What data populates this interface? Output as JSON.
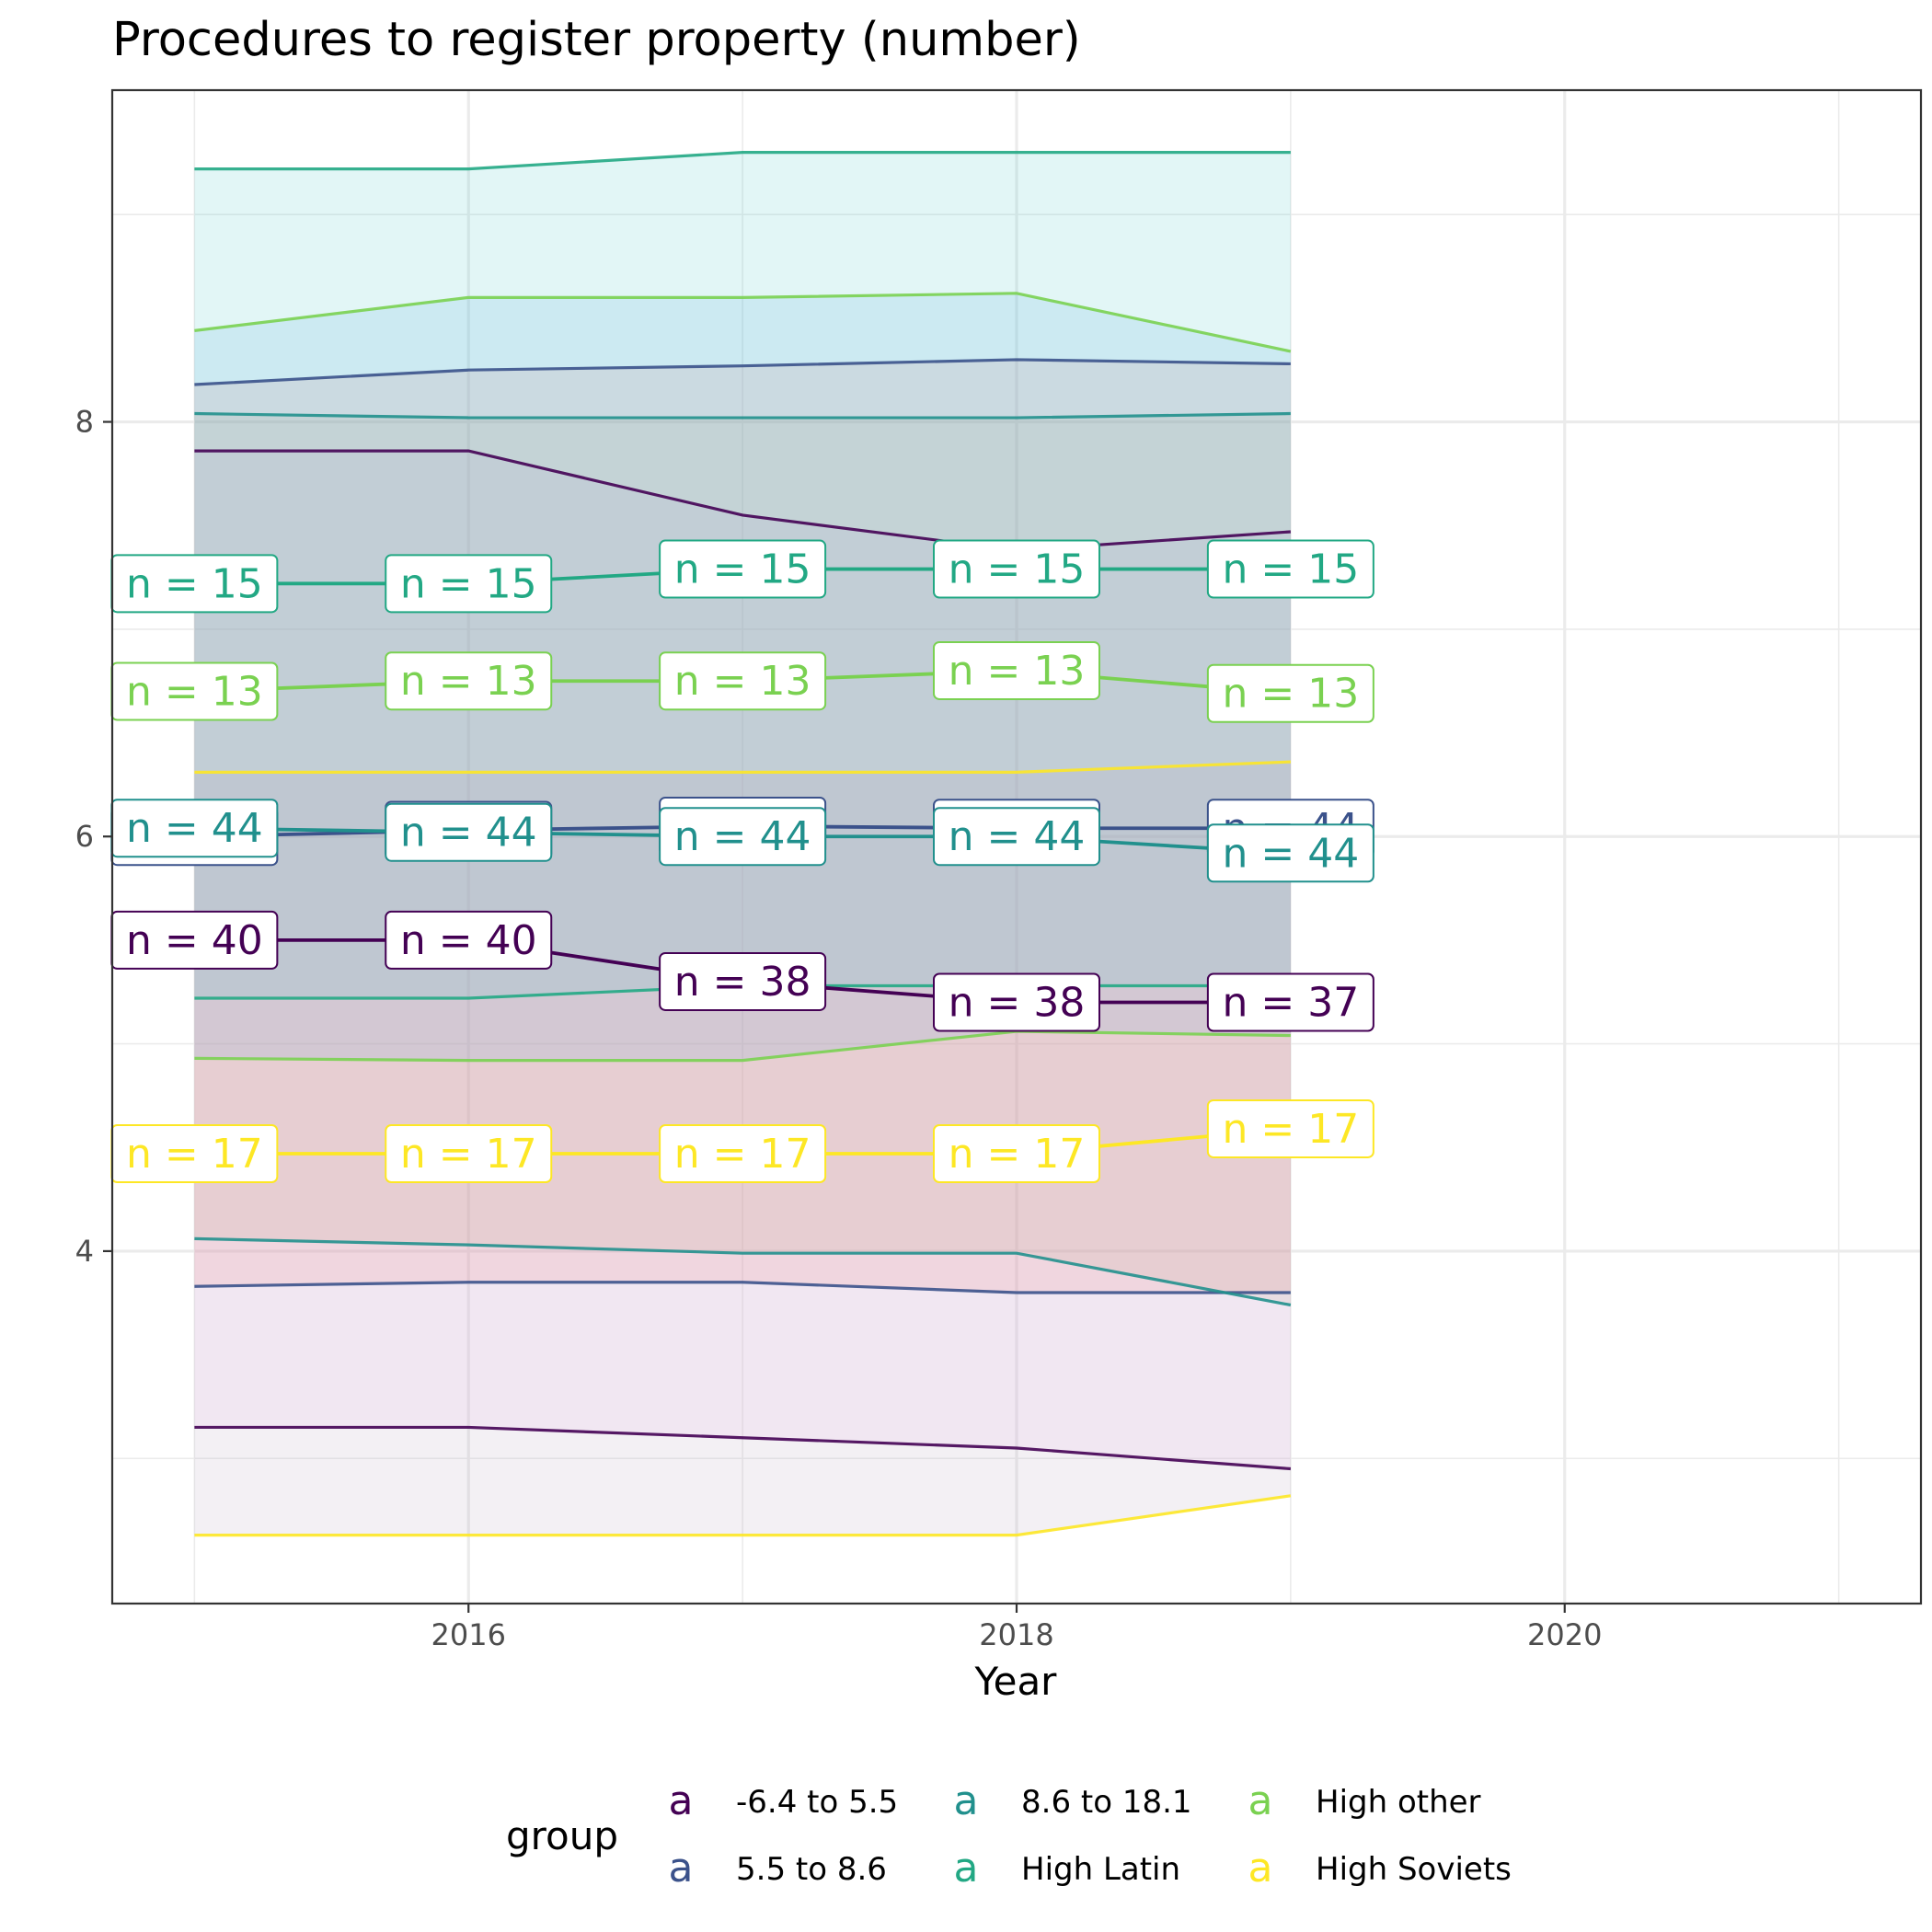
{
  "chart_data": {
    "type": "area",
    "title": "Procedures to register property (number)",
    "xlabel": "Year",
    "ylabel": "",
    "xlim": [
      2014.7,
      2021.3
    ],
    "ylim": [
      2.3,
      9.6
    ],
    "x_ticks": [
      2016,
      2018,
      2020
    ],
    "y_ticks": [
      4,
      6,
      8
    ],
    "x": [
      2015,
      2016,
      2017,
      2018,
      2019
    ],
    "grid": true,
    "legend": {
      "title": "group",
      "placement": "bottom",
      "key_glyph": "a",
      "entries": [
        "-6.4 to 5.5",
        "5.5 to 8.6",
        "8.6 to 18.1",
        "High Latin",
        "High other",
        "High Soviets"
      ]
    },
    "series": [
      {
        "name": "-6.4 to 5.5",
        "color": "#440154",
        "fill": "#f5c2f5",
        "median": [
          5.5,
          5.5,
          5.3,
          5.2,
          5.2
        ],
        "lower": [
          3.15,
          3.15,
          3.1,
          3.05,
          2.95
        ],
        "upper": [
          7.86,
          7.86,
          7.55,
          7.38,
          7.47
        ],
        "n": [
          40,
          40,
          38,
          38,
          37
        ]
      },
      {
        "name": "5.5 to 8.6",
        "color": "#3b528b",
        "fill": "#f8766d",
        "median": [
          6.0,
          6.03,
          6.05,
          6.04,
          6.04
        ],
        "lower": [
          3.83,
          3.85,
          3.85,
          3.8,
          3.8
        ],
        "upper": [
          8.18,
          8.25,
          8.27,
          8.3,
          8.28
        ],
        "n": [
          44,
          44,
          44,
          44,
          44
        ]
      },
      {
        "name": "8.6 to 18.1",
        "color": "#21908d",
        "fill": "#bba68a",
        "median": [
          6.04,
          6.02,
          6.0,
          6.0,
          5.92
        ],
        "lower": [
          4.06,
          4.03,
          3.99,
          3.99,
          3.74
        ],
        "upper": [
          8.04,
          8.02,
          8.02,
          8.02,
          8.04
        ],
        "n": [
          44,
          44,
          44,
          44,
          44
        ]
      },
      {
        "name": "High Latin",
        "color": "#22a884",
        "fill": "#4cc4c4",
        "median": [
          7.22,
          7.22,
          7.29,
          7.29,
          7.29
        ],
        "lower": [
          5.22,
          5.22,
          5.28,
          5.28,
          5.28
        ],
        "upper": [
          9.22,
          9.22,
          9.3,
          9.3,
          9.3
        ],
        "n": [
          15,
          15,
          15,
          15,
          15
        ]
      },
      {
        "name": "High other",
        "color": "#7ad151",
        "fill": "#5db0e3",
        "median": [
          6.7,
          6.75,
          6.75,
          6.8,
          6.69
        ],
        "lower": [
          4.93,
          4.92,
          4.92,
          5.06,
          5.04
        ],
        "upper": [
          8.44,
          8.6,
          8.6,
          8.62,
          8.34
        ],
        "n": [
          13,
          13,
          13,
          13,
          13
        ]
      },
      {
        "name": "High Soviets",
        "color": "#fde725",
        "fill": "#b7a3bd",
        "median": [
          4.47,
          4.47,
          4.47,
          4.47,
          4.59
        ],
        "lower": [
          2.63,
          2.63,
          2.63,
          2.63,
          2.82
        ],
        "upper": [
          6.31,
          6.31,
          6.31,
          6.31,
          6.36
        ],
        "n": [
          17,
          17,
          17,
          17,
          17
        ]
      }
    ]
  }
}
